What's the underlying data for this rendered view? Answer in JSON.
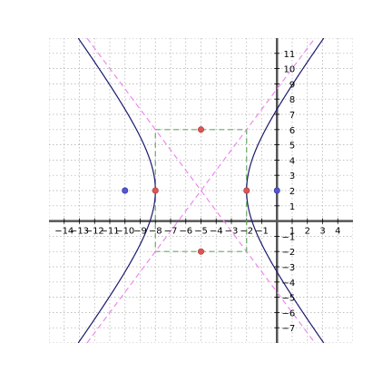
{
  "chart_data": {
    "type": "line",
    "title": "",
    "xlabel": "",
    "ylabel": "",
    "xlim": [
      -15,
      5
    ],
    "ylim": [
      -8,
      12
    ],
    "grid": true,
    "x_ticks": [
      -14,
      -13,
      -12,
      -11,
      -10,
      -9,
      -8,
      -7,
      -6,
      -5,
      -4,
      -3,
      -2,
      -1,
      1,
      2,
      3,
      4
    ],
    "y_ticks": [
      -7,
      -6,
      -5,
      -4,
      -3,
      -2,
      -1,
      1,
      2,
      3,
      4,
      5,
      6,
      7,
      8,
      9,
      10,
      11
    ],
    "hyperbola": {
      "equation": "(x+5)^2/9 - (y-2)^2/16 = 1",
      "center": [
        -5,
        2
      ],
      "a": 3,
      "b": 4,
      "color": "#1a1a6e"
    },
    "asymptotes": {
      "lines": [
        {
          "slope": 1.3333,
          "point": [
            -5,
            2
          ]
        },
        {
          "slope": -1.3333,
          "point": [
            -5,
            2
          ]
        }
      ],
      "color": "#ee88ee"
    },
    "rectangle": {
      "x": [
        -8,
        -2
      ],
      "y": [
        -2,
        6
      ],
      "color": "#66aa66"
    },
    "vertices": {
      "points": [
        [
          -8,
          2
        ],
        [
          -2,
          2
        ],
        [
          -5,
          6
        ],
        [
          -5,
          -2
        ]
      ],
      "color": "#dd5555"
    },
    "foci": {
      "points": [
        [
          -10,
          2
        ],
        [
          0,
          2
        ]
      ],
      "color": "#5555cc"
    },
    "colors": {
      "axis": "#555555",
      "grid": "#aaaaaa"
    }
  }
}
